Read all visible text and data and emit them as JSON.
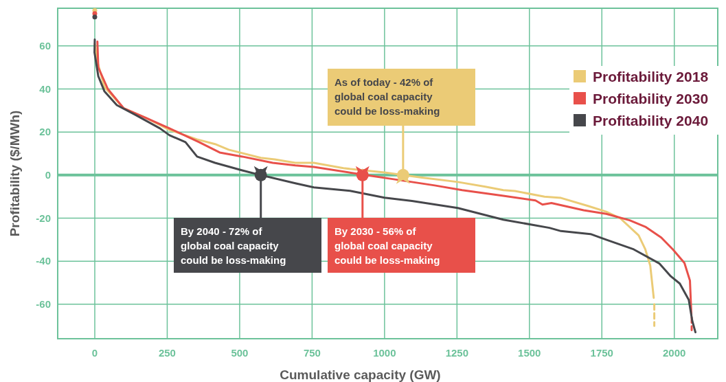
{
  "chart_data": {
    "type": "line",
    "xlabel": "Cumulative capacity (GW)",
    "ylabel": "Profitability ($/MWh)",
    "xlim": [
      -128,
      2150
    ],
    "ylim": [
      -76,
      77.5
    ],
    "xticks": [
      0,
      250,
      500,
      750,
      1000,
      1250,
      1500,
      1750,
      2000
    ],
    "yticks": [
      {
        "value": 60,
        "label": "60"
      },
      {
        "value": 40,
        "label": "40"
      },
      {
        "value": 20,
        "label": "20"
      },
      {
        "value": 0,
        "label": "0"
      },
      {
        "value": -20,
        "label": "-20"
      },
      {
        "value": -40,
        "label": "-40"
      },
      {
        "value": -60,
        "label": "-60"
      }
    ],
    "grid": true,
    "legend": "top right",
    "marker": "none",
    "line_style": "solid",
    "ref_lines": [
      {
        "axis": "y",
        "value": 0,
        "color": "#6cc29a"
      }
    ],
    "series": [
      {
        "type": "scatter",
        "marker": "circle",
        "color": "#ebcb76",
        "x": [
          0
        ],
        "values": [
          76.5
        ]
      },
      {
        "type": "scatter",
        "marker": "circle",
        "color": "#e8504a",
        "x": [
          0
        ],
        "values": [
          75
        ]
      },
      {
        "type": "scatter",
        "marker": "circle",
        "color": "#46474b",
        "x": [
          0
        ],
        "values": [
          73.4
        ]
      },
      {
        "line_style": "dashed",
        "color": "#ebcb76",
        "x": [
          1931,
          1931
        ],
        "values": [
          -60,
          -70
        ]
      },
      {
        "line_style": "dashed",
        "color": "#e8504a",
        "x": [
          2060,
          2060
        ],
        "values": [
          -66,
          -72
        ]
      },
      {
        "name": "Profitability 2018",
        "color": "#ebcb76",
        "x": [
          0,
          9,
          33,
          100,
          178,
          258,
          353,
          415,
          462,
          573,
          621,
          692,
          756,
          858,
          1000,
          1130,
          1253,
          1348,
          1410,
          1450,
          1552,
          1609,
          1704,
          1765,
          1813,
          1877,
          1900,
          1917,
          1929
        ],
        "values": [
          61,
          52.7,
          41,
          31,
          26.5,
          21,
          16.6,
          14.4,
          11.8,
          8,
          7.3,
          5.7,
          5.7,
          3.2,
          1.2,
          -1.2,
          -3.2,
          -5.4,
          -7,
          -7.4,
          -10,
          -10.6,
          -14.4,
          -17,
          -20,
          -28,
          -34.5,
          -42,
          -57
        ]
      },
      {
        "name": "Profitability 2030",
        "color": "#e8504a",
        "x": [
          9,
          12,
          45,
          100,
          178,
          258,
          360,
          431,
          509,
          614,
          692,
          756,
          922,
          1016,
          1173,
          1268,
          1410,
          1521,
          1545,
          1576,
          1687,
          1765,
          1846,
          1900,
          1955,
          1995,
          2035,
          2054,
          2059
        ],
        "values": [
          62,
          50,
          40,
          31,
          26.5,
          21.7,
          15.3,
          10.5,
          8.6,
          5.7,
          4.5,
          3.8,
          0.3,
          -1.6,
          -4.8,
          -7,
          -9.6,
          -11.8,
          -13.7,
          -13,
          -16.3,
          -18,
          -21,
          -24,
          -29,
          -34.5,
          -40.8,
          -49,
          -65
        ]
      },
      {
        "name": "Profitability 2040",
        "color": "#46474b",
        "x": [
          0,
          -1,
          12,
          33,
          76,
          140,
          225,
          258,
          313,
          353,
          415,
          509,
          573,
          692,
          756,
          881,
          1000,
          1095,
          1253,
          1410,
          1569,
          1609,
          1711,
          1765,
          1860,
          1948,
          1988,
          2019,
          2050,
          2062,
          2073
        ],
        "values": [
          63,
          57,
          46,
          39,
          32.5,
          28,
          21.7,
          18.5,
          15.3,
          8.6,
          5.7,
          2.2,
          0,
          -3.8,
          -5.7,
          -7.3,
          -10.5,
          -12,
          -15.3,
          -20.7,
          -24.5,
          -26,
          -27.4,
          -30,
          -34.5,
          -41,
          -47,
          -50.4,
          -58,
          -67.7,
          -73
        ]
      }
    ],
    "annotations": [
      {
        "text": "As of today - 42% of\nglobal coal capacity\ncould be loss-making",
        "x": 1064,
        "y": 0
      },
      {
        "text": "By 2030 - 56% of\nglobal coal capacity\ncould be loss-making",
        "x": 924,
        "y": 0
      },
      {
        "text": "By 2040 - 72% of\nglobal coal capacity\ncould be loss-making",
        "x": 573,
        "y": 0
      }
    ]
  }
}
